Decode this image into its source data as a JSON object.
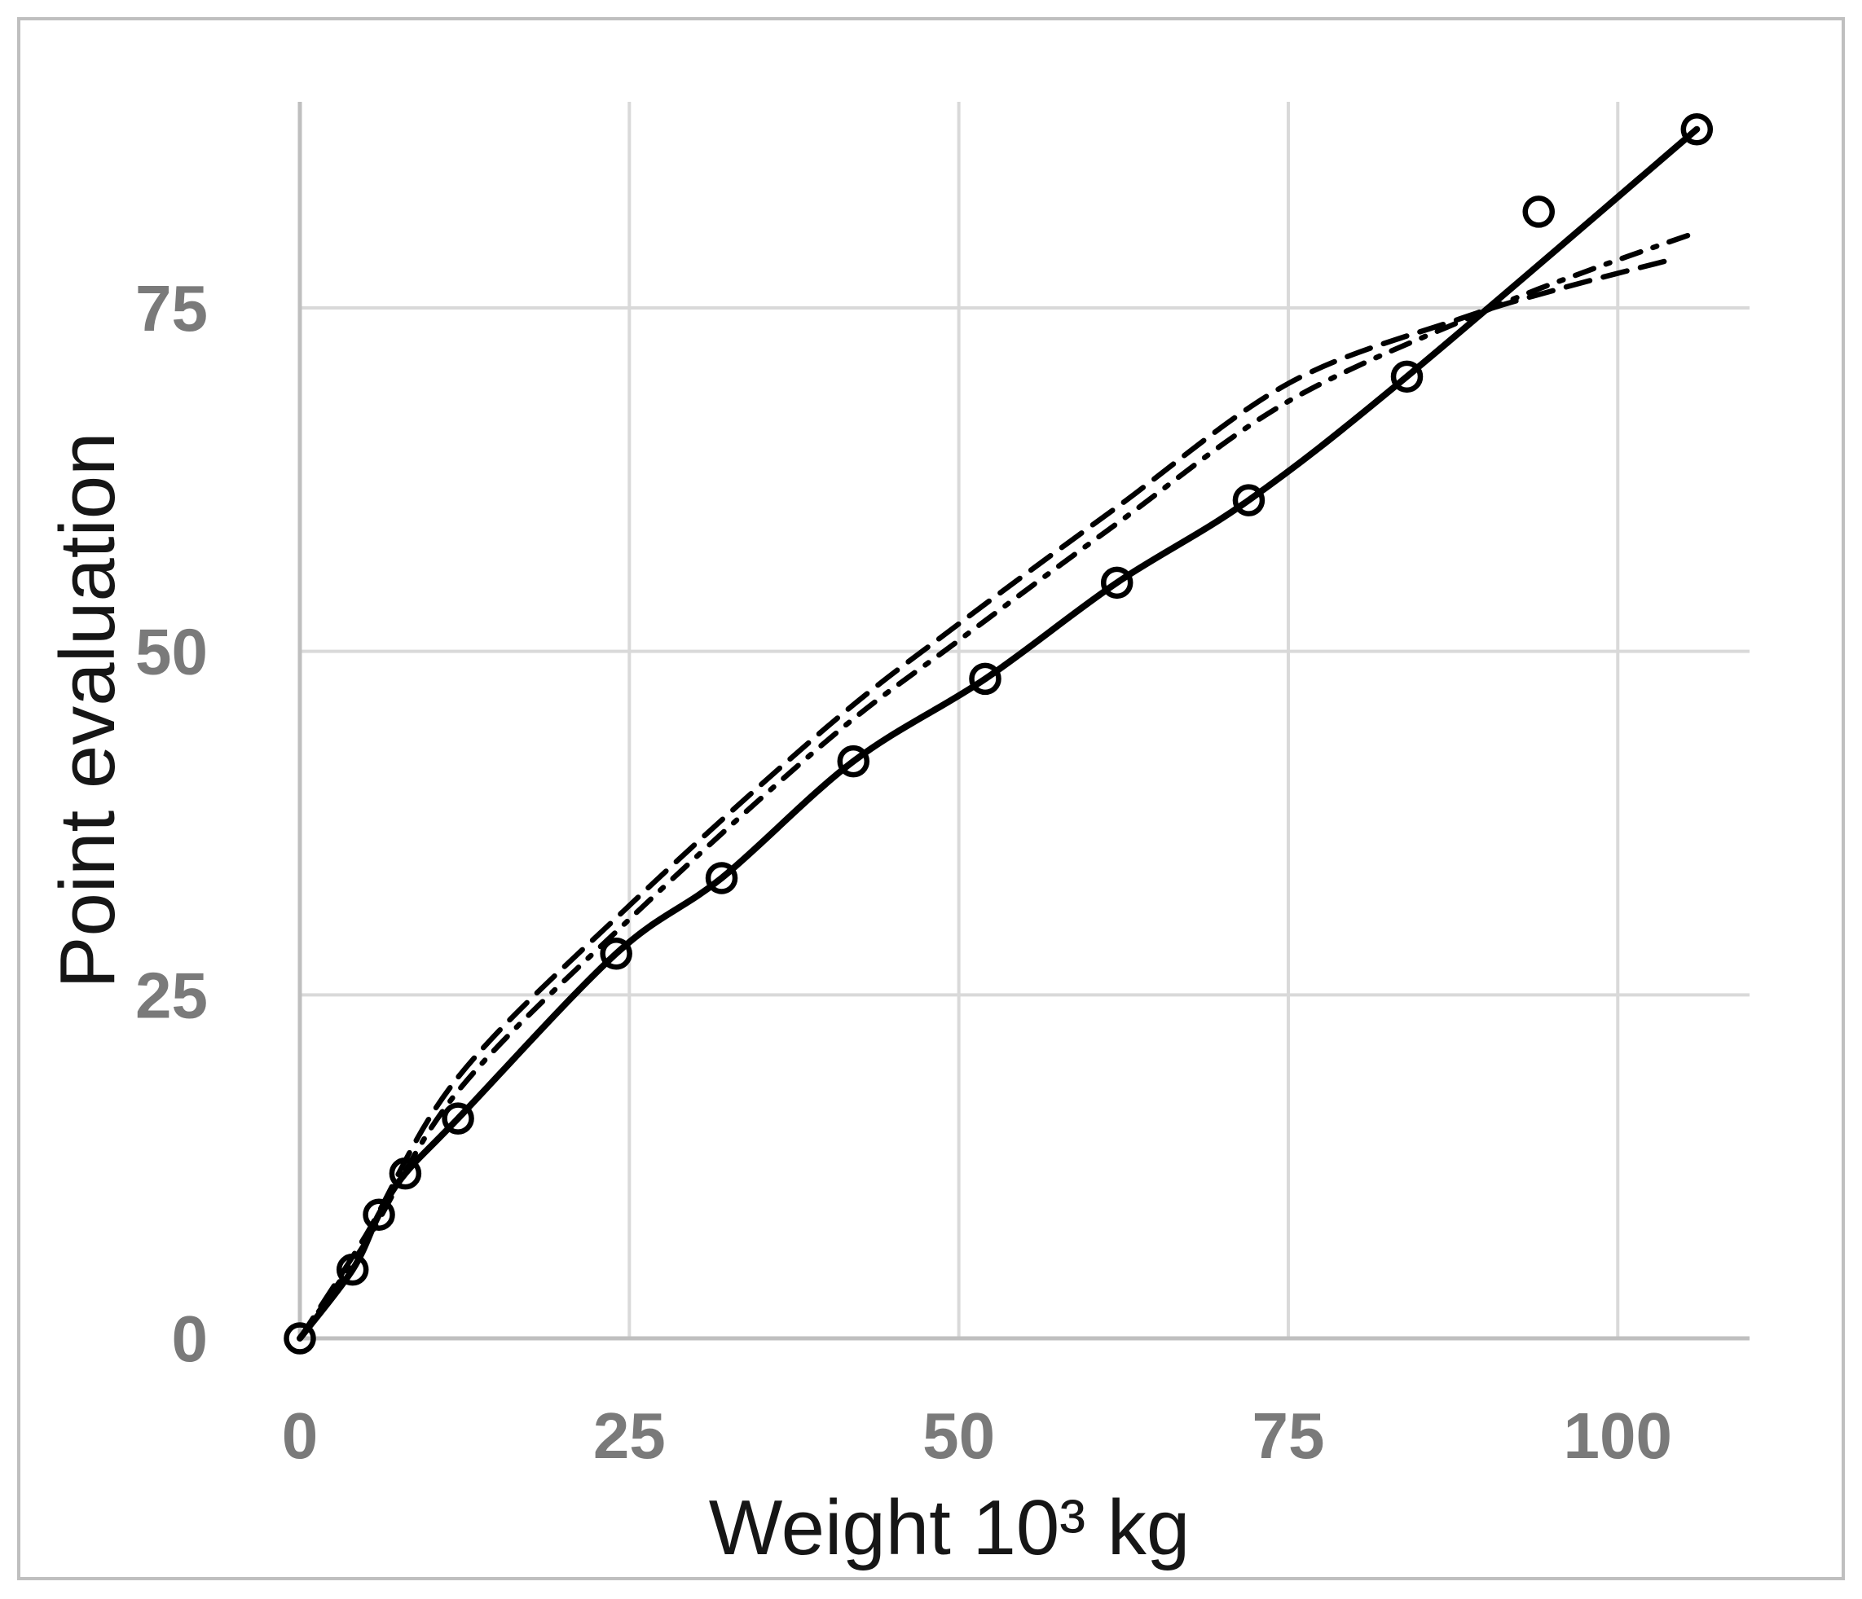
{
  "chart_data": {
    "type": "line",
    "title": "",
    "xlabel": "Weight 10³ kg",
    "ylabel": "Point evaluation",
    "x_ticks": [
      0,
      25,
      50,
      75,
      100
    ],
    "y_ticks": [
      0,
      25,
      50,
      75
    ],
    "xlim": [
      0,
      110
    ],
    "ylim": [
      0,
      90
    ],
    "grid": true,
    "legend": "none",
    "colors": {
      "series": "#000000",
      "grid": "#d9d9d9",
      "axis": "#bfbfbf",
      "tick_text": "#7a7a7a",
      "border": "#bfbfbf"
    },
    "series": [
      {
        "name": "evaluated-points-spline",
        "style": "solid",
        "marker": "open-circle",
        "markers": [
          [
            0,
            0
          ],
          [
            4,
            5
          ],
          [
            6,
            9
          ],
          [
            8,
            12
          ],
          [
            12,
            16
          ],
          [
            24,
            28
          ],
          [
            32,
            33.5
          ],
          [
            42,
            42
          ],
          [
            52,
            48
          ],
          [
            62,
            55
          ],
          [
            72,
            61
          ],
          [
            84,
            70
          ],
          [
            94,
            82
          ],
          [
            106,
            88
          ]
        ],
        "curve": [
          [
            0,
            0
          ],
          [
            4,
            5
          ],
          [
            6,
            9
          ],
          [
            8,
            12
          ],
          [
            12,
            16
          ],
          [
            24,
            28
          ],
          [
            32,
            33.5
          ],
          [
            42,
            42
          ],
          [
            52,
            48
          ],
          [
            62,
            55
          ],
          [
            72,
            61
          ],
          [
            84,
            70
          ],
          [
            106,
            88
          ]
        ]
      },
      {
        "name": "fit-dashed",
        "style": "dashed",
        "marker": "none",
        "markers": [],
        "curve": [
          [
            0,
            0
          ],
          [
            5,
            7.5
          ],
          [
            12,
            19
          ],
          [
            25,
            31.5
          ],
          [
            40,
            44.5
          ],
          [
            50,
            52
          ],
          [
            62,
            60.5
          ],
          [
            75,
            69.5
          ],
          [
            88,
            74.2
          ],
          [
            96,
            76.5
          ],
          [
            104,
            78.5
          ]
        ]
      },
      {
        "name": "fit-dashdot",
        "style": "dashdot",
        "marker": "none",
        "markers": [],
        "curve": [
          [
            0,
            0
          ],
          [
            5,
            7
          ],
          [
            12,
            18
          ],
          [
            25,
            30.5
          ],
          [
            40,
            43.5
          ],
          [
            50,
            50.8
          ],
          [
            62,
            59.3
          ],
          [
            75,
            68.2
          ],
          [
            90,
            74.8
          ],
          [
            98,
            77.8
          ],
          [
            106,
            80.5
          ]
        ]
      }
    ]
  }
}
